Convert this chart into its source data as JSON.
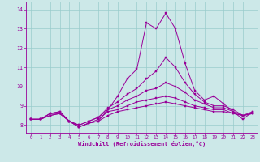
{
  "xlabel": "Windchill (Refroidissement éolien,°C)",
  "background_color": "#cce8e8",
  "line_color": "#990099",
  "grid_color": "#99cccc",
  "xlim": [
    -0.5,
    23.5
  ],
  "ylim": [
    7.6,
    14.4
  ],
  "xticks": [
    0,
    1,
    2,
    3,
    4,
    5,
    6,
    7,
    8,
    9,
    10,
    11,
    12,
    13,
    14,
    15,
    16,
    17,
    18,
    19,
    20,
    21,
    22,
    23
  ],
  "yticks": [
    8,
    9,
    10,
    11,
    12,
    13,
    14
  ],
  "hours": [
    0,
    1,
    2,
    3,
    4,
    5,
    6,
    7,
    8,
    9,
    10,
    11,
    12,
    13,
    14,
    15,
    16,
    17,
    18,
    19,
    20,
    21,
    22,
    23
  ],
  "series": [
    [
      8.3,
      8.3,
      8.6,
      8.6,
      8.2,
      7.9,
      8.1,
      8.2,
      8.8,
      9.5,
      10.4,
      10.9,
      13.3,
      13.0,
      13.8,
      13.0,
      11.2,
      9.8,
      9.3,
      9.5,
      9.1,
      8.7,
      8.3,
      8.7
    ],
    [
      8.3,
      8.3,
      8.6,
      8.7,
      8.2,
      8.0,
      8.2,
      8.4,
      8.9,
      9.2,
      9.6,
      9.9,
      10.4,
      10.8,
      11.5,
      11.0,
      10.2,
      9.6,
      9.2,
      9.0,
      9.0,
      8.8,
      8.5,
      8.7
    ],
    [
      8.3,
      8.3,
      8.6,
      8.7,
      8.2,
      8.0,
      8.2,
      8.4,
      8.8,
      9.0,
      9.3,
      9.5,
      9.8,
      9.9,
      10.2,
      10.0,
      9.7,
      9.3,
      9.1,
      8.9,
      8.9,
      8.7,
      8.5,
      8.6
    ],
    [
      8.3,
      8.3,
      8.5,
      8.6,
      8.2,
      7.9,
      8.1,
      8.3,
      8.7,
      8.8,
      9.0,
      9.2,
      9.3,
      9.4,
      9.5,
      9.4,
      9.2,
      9.0,
      8.9,
      8.8,
      8.8,
      8.6,
      8.5,
      8.6
    ],
    [
      8.3,
      8.3,
      8.5,
      8.6,
      8.2,
      7.9,
      8.1,
      8.2,
      8.5,
      8.7,
      8.8,
      8.9,
      9.0,
      9.1,
      9.2,
      9.1,
      9.0,
      8.9,
      8.8,
      8.7,
      8.7,
      8.6,
      8.5,
      8.6
    ]
  ]
}
